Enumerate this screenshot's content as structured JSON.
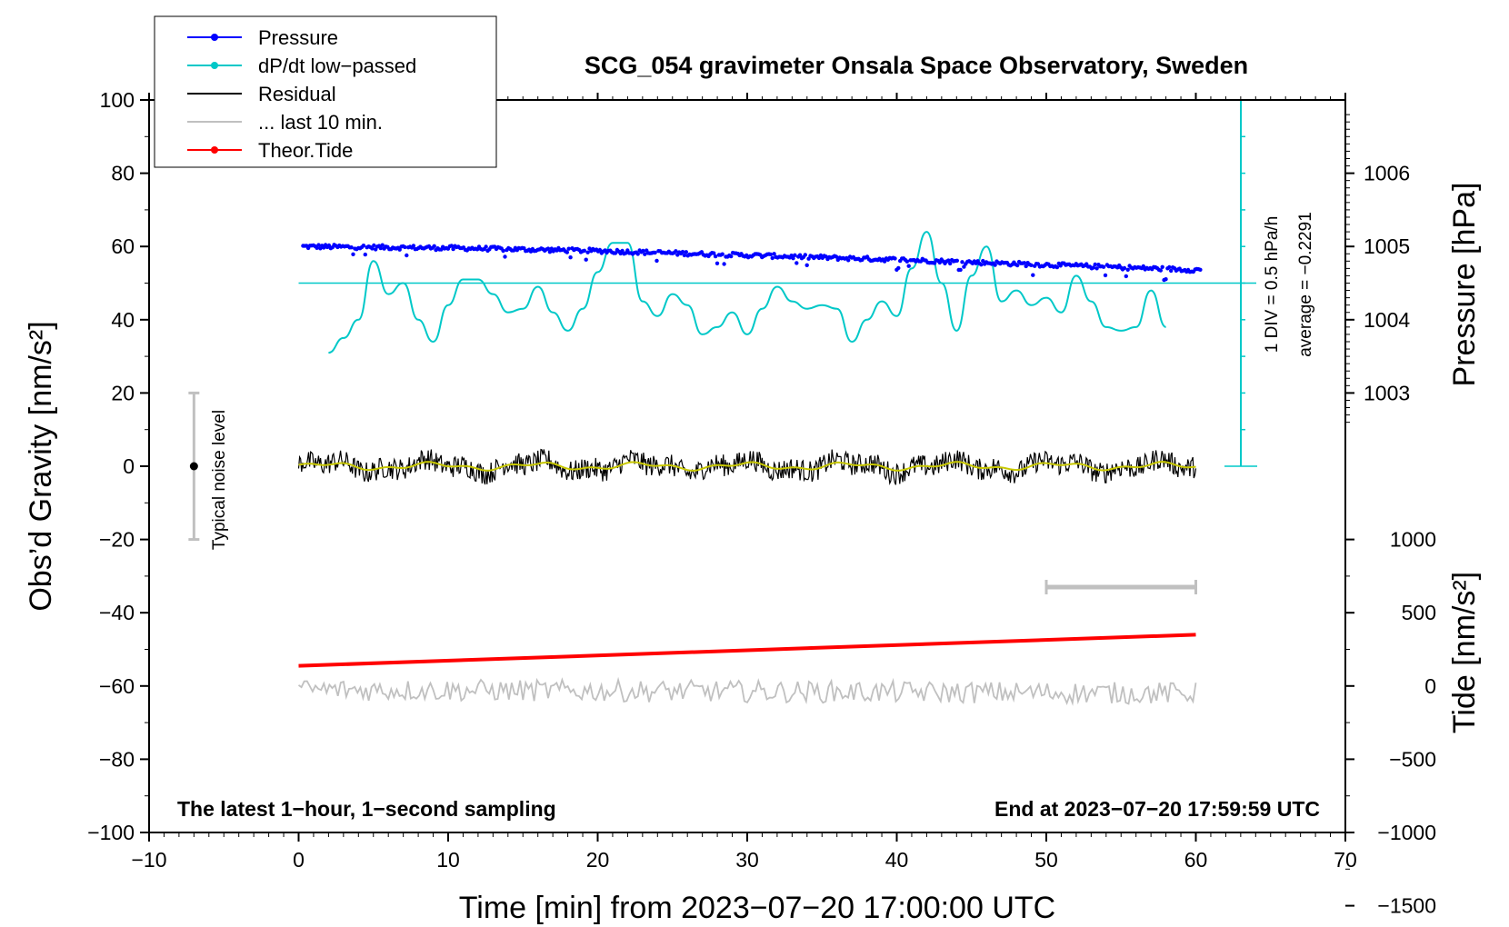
{
  "chart_data": {
    "type": "line",
    "title": "SCG_054 gravimeter Onsala Space Observatory, Sweden",
    "xlabel": "Time [min] from 2023−07−20 17:00:00 UTC",
    "ylabel_left": "Obs’d Gravity [nm/s²]",
    "ylabel_right_top": "Pressure [hPa]",
    "ylabel_right_bottom": "Tide [nm/s²]",
    "xlim": [
      -10,
      70
    ],
    "ylim": [
      -100,
      100
    ],
    "xticks": [
      "−10",
      "0",
      "10",
      "20",
      "30",
      "40",
      "50",
      "60",
      "70"
    ],
    "yticks_left": [
      "100",
      "80",
      "60",
      "40",
      "20",
      "0",
      "−20",
      "−40",
      "−60",
      "−80",
      "−100"
    ],
    "pressure_ticks": [
      "1006",
      "1005",
      "1004",
      "1003"
    ],
    "pressure_tick_values": [
      1006,
      1005,
      1004,
      1003
    ],
    "tide_ticks": [
      "1000",
      "500",
      "0",
      "−500",
      "−1000",
      "−1500"
    ],
    "tide_tick_values": [
      1000,
      500,
      0,
      -500,
      -1000,
      -1500
    ],
    "legend": [
      {
        "label": "Pressure",
        "color": "#0000ff",
        "marker": true
      },
      {
        "label": "dP/dt low−passed",
        "color": "#00c8c8",
        "marker": true
      },
      {
        "label": "Residual",
        "color": "#000000",
        "marker": false
      },
      {
        "label": "... last 10 min.",
        "color": "#c0c0c0",
        "marker": false
      },
      {
        "label": "Theor.Tide",
        "color": "#ff0000",
        "marker": true
      }
    ],
    "series": [
      {
        "name": "Pressure",
        "unit": "hPa",
        "x": [
          0,
          10,
          20,
          30,
          40,
          50,
          60
        ],
        "values": [
          1005.0,
          1004.98,
          1004.94,
          1004.88,
          1004.82,
          1004.75,
          1004.68
        ]
      },
      {
        "name": "dP/dt low−passed",
        "unit": "nm/s² scale",
        "x": [
          2,
          3,
          4,
          5,
          6,
          7,
          8,
          9,
          10,
          11,
          12,
          13,
          14,
          15,
          16,
          17,
          18,
          19,
          20,
          21,
          22,
          23,
          24,
          25,
          26,
          27,
          28,
          29,
          30,
          31,
          32,
          33,
          34,
          35,
          36,
          37,
          38,
          39,
          40,
          41,
          42,
          43,
          44,
          45,
          46,
          47,
          48,
          49,
          50,
          51,
          52,
          53,
          54,
          55,
          56,
          57,
          58
        ],
        "values": [
          31,
          35,
          40,
          56,
          47,
          50,
          40,
          34,
          44,
          51,
          51,
          47,
          42,
          43,
          49,
          42,
          37,
          43,
          53,
          61,
          61,
          45,
          41,
          47,
          44,
          36,
          38,
          42,
          36,
          43,
          49,
          45,
          43,
          44,
          43,
          34,
          40,
          45,
          41,
          54,
          64,
          50,
          37,
          52,
          60,
          45,
          48,
          44,
          46,
          42,
          52,
          45,
          38,
          37,
          38,
          48,
          38
        ]
      },
      {
        "name": "Residual",
        "unit": "nm/s²",
        "x": [
          0,
          60
        ],
        "values": [
          0,
          0
        ],
        "noise_amplitude": 3
      },
      {
        "name": "... last 10 min.",
        "unit": "nm/s²",
        "x": [
          0,
          60
        ],
        "values": [
          -61,
          -62
        ],
        "noise_amplitude": 3
      },
      {
        "name": "Theor.Tide",
        "unit": "nm/s²",
        "x": [
          0,
          60
        ],
        "values": [
          -54.5,
          -46
        ]
      }
    ],
    "zero_line_value": 50,
    "scale_bar_label": "1 DIV = 0.5 hPa/h",
    "average_label": "average = −0.2291",
    "noise_label": "Typical noise level",
    "noise_range": [
      -20,
      20
    ],
    "noise_x": -7,
    "last10_bar_x": [
      50,
      60
    ],
    "last10_bar_y": -33,
    "footer_left": "The latest 1−hour, 1−second sampling",
    "footer_right": "End at 2023−07−20 17:59:59 UTC"
  }
}
